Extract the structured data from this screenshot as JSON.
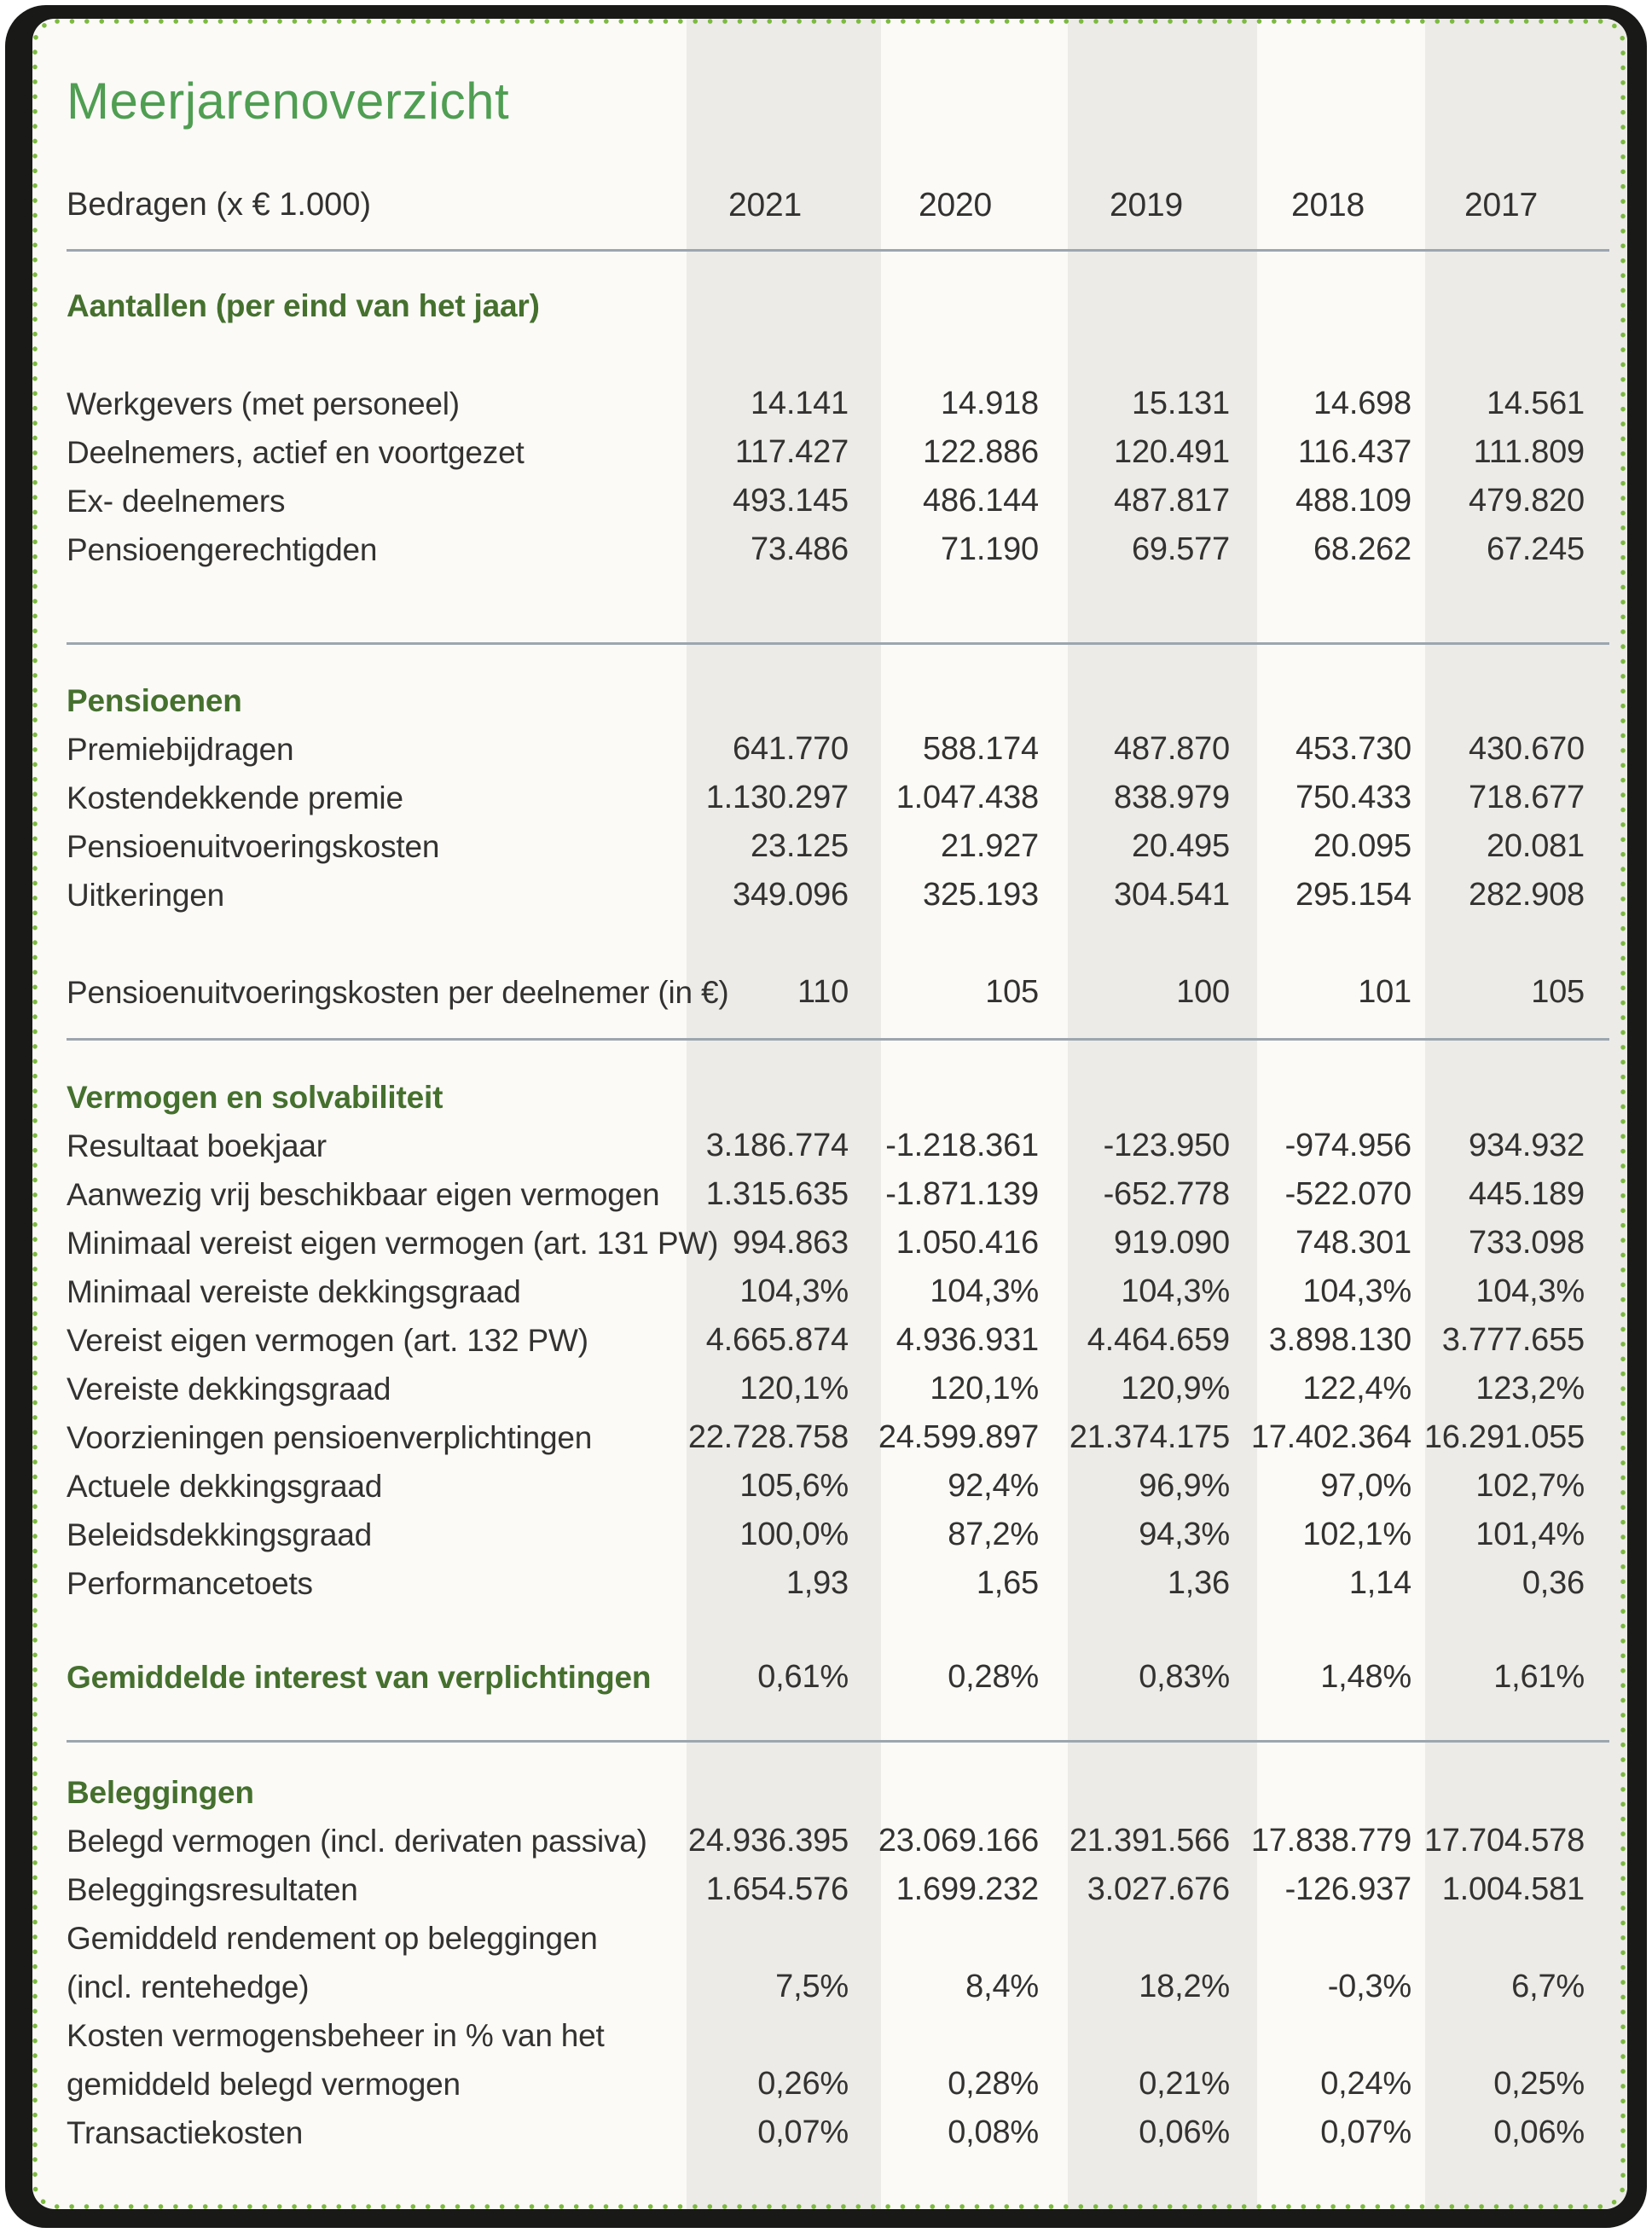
{
  "title": "Meerjarenoverzicht",
  "header": {
    "label": "Bedragen (x € 1.000)",
    "years": [
      "2021",
      "2020",
      "2019",
      "2018",
      "2017"
    ]
  },
  "colors": {
    "frame": "#191917",
    "card": "#fbfaf7",
    "band": "#ecebe8",
    "dot": "#7cba40",
    "title-green": "#4f9e52",
    "heading-green": "#45702e",
    "text": "#333231",
    "rule": "#9ca6af"
  },
  "table": {
    "rows": [
      {
        "kind": "heading",
        "label": "Aantallen (per eind van het jaar)"
      },
      {
        "kind": "gap",
        "h": 58
      },
      {
        "kind": "data",
        "label": "Werkgevers (met personeel)",
        "values": [
          "14.141",
          "14.918",
          "15.131",
          "14.698",
          "14.561"
        ]
      },
      {
        "kind": "data",
        "label": "Deelnemers, actief en voortgezet",
        "values": [
          "117.427",
          "122.886",
          "120.491",
          "116.437",
          "111.809"
        ]
      },
      {
        "kind": "data",
        "label": "Ex- deelnemers",
        "values": [
          "493.145",
          "486.144",
          "487.817",
          "488.109",
          "479.820"
        ]
      },
      {
        "kind": "data",
        "label": "Pensioengerechtigden",
        "values": [
          "73.486",
          "71.190",
          "69.577",
          "68.262",
          "67.245"
        ]
      },
      {
        "kind": "gap",
        "h": 80
      },
      {
        "kind": "divider"
      },
      {
        "kind": "gap",
        "h": 37
      },
      {
        "kind": "heading",
        "label": "Pensioenen"
      },
      {
        "kind": "data",
        "label": "Premiebijdragen",
        "values": [
          "641.770",
          "588.174",
          "487.870",
          "453.730",
          "430.670"
        ]
      },
      {
        "kind": "data",
        "label": "Kostendekkende premie",
        "values": [
          "1.130.297",
          "1.047.438",
          "838.979",
          "750.433",
          "718.677"
        ]
      },
      {
        "kind": "data",
        "label": "Pensioenuitvoeringskosten",
        "values": [
          "23.125",
          "21.927",
          "20.495",
          "20.095",
          "20.081"
        ]
      },
      {
        "kind": "data",
        "label": "Uitkeringen",
        "values": [
          "349.096",
          "325.193",
          "304.541",
          "295.154",
          "282.908"
        ]
      },
      {
        "kind": "gap",
        "h": 57
      },
      {
        "kind": "data",
        "label": "Pensioenuitvoeringskosten per deelnemer (in €)",
        "values": [
          "110",
          "105",
          "100",
          "101",
          "105"
        ]
      },
      {
        "kind": "gap",
        "h": 25
      },
      {
        "kind": "divider"
      },
      {
        "kind": "gap",
        "h": 38
      },
      {
        "kind": "heading",
        "label": "Vermogen en solvabiliteit"
      },
      {
        "kind": "data",
        "label": "Resultaat boekjaar",
        "values": [
          "3.186.774",
          "-1.218.361",
          "-123.950",
          "-974.956",
          "934.932"
        ]
      },
      {
        "kind": "data",
        "label": "Aanwezig vrij beschikbaar eigen vermogen",
        "values": [
          "1.315.635",
          "-1.871.139",
          "-652.778",
          "-522.070",
          "445.189"
        ]
      },
      {
        "kind": "data",
        "label": "Minimaal vereist eigen vermogen (art. 131 PW)",
        "values": [
          "994.863",
          "1.050.416",
          "919.090",
          "748.301",
          "733.098"
        ]
      },
      {
        "kind": "data",
        "label": "Minimaal vereiste dekkingsgraad",
        "values": [
          "104,3%",
          "104,3%",
          "104,3%",
          "104,3%",
          "104,3%"
        ]
      },
      {
        "kind": "data",
        "label": "Vereist eigen vermogen (art. 132 PW)",
        "values": [
          "4.665.874",
          "4.936.931",
          "4.464.659",
          "3.898.130",
          "3.777.655"
        ]
      },
      {
        "kind": "data",
        "label": "Vereiste dekkingsgraad",
        "values": [
          "120,1%",
          "120,1%",
          "120,9%",
          "122,4%",
          "123,2%"
        ]
      },
      {
        "kind": "data",
        "label": "Voorzieningen pensioenverplichtingen",
        "values": [
          "22.728.758",
          "24.599.897",
          "21.374.175",
          "17.402.364",
          "16.291.055"
        ]
      },
      {
        "kind": "data",
        "label": "Actuele dekkingsgraad",
        "values": [
          "105,6%",
          "92,4%",
          "96,9%",
          "97,0%",
          "102,7%"
        ]
      },
      {
        "kind": "data",
        "label": "Beleidsdekkingsgraad",
        "values": [
          "100,0%",
          "87,2%",
          "94,3%",
          "102,1%",
          "101,4%"
        ]
      },
      {
        "kind": "data",
        "label": "Performancetoets",
        "values": [
          "1,93",
          "1,65",
          "1,36",
          "1,14",
          "0,36"
        ]
      },
      {
        "kind": "gap",
        "h": 53
      },
      {
        "kind": "heading-values",
        "label": "Gemiddelde interest van verplichtingen",
        "values": [
          "0,61%",
          "0,28%",
          "0,83%",
          "1,48%",
          "1,61%"
        ]
      },
      {
        "kind": "gap",
        "h": 45
      },
      {
        "kind": "divider"
      },
      {
        "kind": "gap",
        "h": 30
      },
      {
        "kind": "heading",
        "label": "Beleggingen"
      },
      {
        "kind": "data",
        "label": "Belegd vermogen (incl. derivaten passiva)",
        "values": [
          "24.936.395",
          "23.069.166",
          "21.391.566",
          "17.838.779",
          "17.704.578"
        ]
      },
      {
        "kind": "data",
        "label": "Beleggingsresultaten",
        "values": [
          "1.654.576",
          "1.699.232",
          "3.027.676",
          "-126.937",
          "1.004.581"
        ]
      },
      {
        "kind": "data",
        "label": "Gemiddeld rendement op beleggingen",
        "values": [
          "",
          "",
          "",
          "",
          ""
        ]
      },
      {
        "kind": "data",
        "label": "(incl. rentehedge)",
        "values": [
          "7,5%",
          "8,4%",
          "18,2%",
          "-0,3%",
          "6,7%"
        ]
      },
      {
        "kind": "data",
        "label": "Kosten vermogensbeheer in % van het",
        "values": [
          "",
          "",
          "",
          "",
          ""
        ]
      },
      {
        "kind": "data",
        "label": "gemiddeld belegd vermogen",
        "values": [
          "0,26%",
          "0,28%",
          "0,21%",
          "0,24%",
          "0,25%"
        ]
      },
      {
        "kind": "data",
        "label": "Transactiekosten",
        "values": [
          "0,07%",
          "0,08%",
          "0,06%",
          "0,07%",
          "0,06%"
        ]
      }
    ]
  }
}
